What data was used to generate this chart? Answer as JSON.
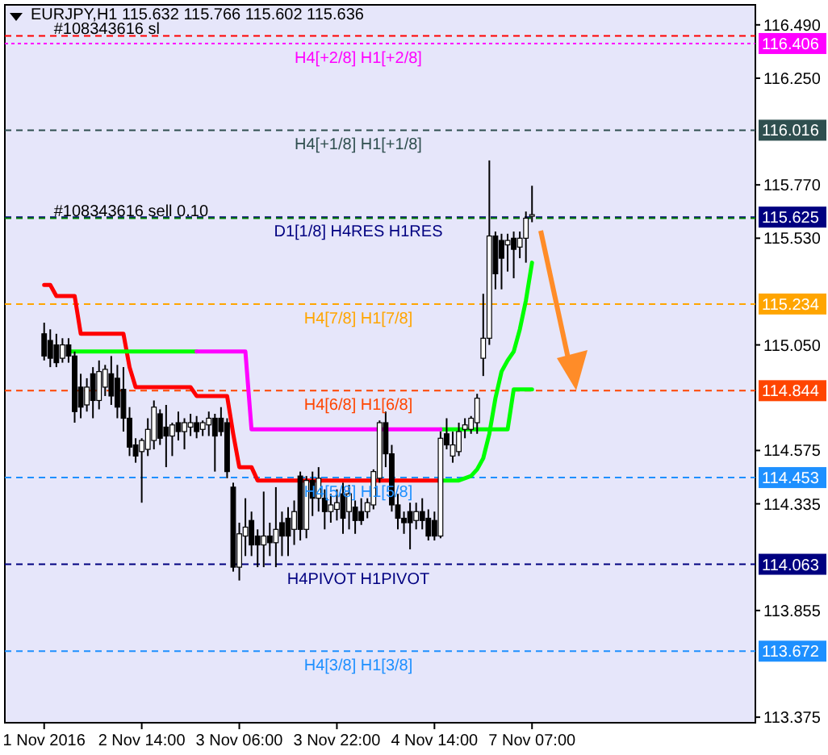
{
  "chart_data": {
    "type": "candlestick",
    "title": "EURJPY,H1 115.632 115.766 115.602 115.636",
    "categories": [
      "1 Nov 2016",
      null,
      null,
      null,
      null,
      null,
      null,
      null,
      null,
      null,
      null,
      null,
      null,
      null,
      null,
      null,
      "2 Nov 14:00",
      null,
      null,
      null,
      null,
      null,
      null,
      null,
      null,
      null,
      null,
      null,
      null,
      null,
      null,
      null,
      "3 Nov 06:00",
      null,
      null,
      null,
      null,
      null,
      null,
      null,
      null,
      null,
      null,
      null,
      null,
      null,
      null,
      null,
      "3 Nov 22:00",
      null,
      null,
      null,
      null,
      null,
      null,
      null,
      null,
      null,
      null,
      null,
      null,
      null,
      null,
      null,
      "4 Nov 14:00",
      null,
      null,
      null,
      null,
      null,
      null,
      null,
      null,
      null,
      null,
      null,
      null,
      null,
      null,
      null,
      "7 Nov 07:00",
      null,
      null,
      null,
      null,
      null,
      null,
      null,
      null,
      null,
      null,
      null,
      null,
      null,
      null,
      null,
      null,
      null,
      null,
      null,
      null,
      null,
      null,
      null,
      null,
      null,
      null,
      null,
      null,
      null,
      null,
      null,
      null,
      null,
      null,
      null,
      null
    ],
    "ohlc": [
      [
        115.1,
        115.15,
        114.98,
        115.0
      ],
      [
        115.07,
        115.12,
        114.95,
        114.99
      ],
      [
        115.05,
        115.1,
        114.95,
        114.97
      ],
      [
        114.99,
        115.08,
        114.97,
        115.05
      ],
      [
        115.05,
        115.08,
        114.97,
        115.0
      ],
      [
        115.0,
        115.02,
        114.7,
        114.75
      ],
      [
        114.86,
        114.92,
        114.72,
        114.77
      ],
      [
        114.78,
        114.9,
        114.75,
        114.86
      ],
      [
        114.92,
        114.95,
        114.72,
        114.8
      ],
      [
        114.8,
        114.98,
        114.76,
        114.93
      ],
      [
        114.86,
        114.96,
        114.82,
        114.94
      ],
      [
        114.92,
        115.0,
        114.78,
        114.82
      ],
      [
        114.9,
        114.96,
        114.72,
        114.77
      ],
      [
        114.85,
        114.95,
        114.66,
        114.72
      ],
      [
        114.72,
        114.77,
        114.55,
        114.59
      ],
      [
        114.6,
        114.63,
        114.52,
        114.55
      ],
      [
        114.57,
        114.63,
        114.34,
        114.62
      ],
      [
        114.58,
        114.72,
        114.55,
        114.67
      ],
      [
        114.62,
        114.8,
        114.58,
        114.77
      ],
      [
        114.74,
        114.76,
        114.6,
        114.63
      ],
      [
        114.68,
        114.78,
        114.5,
        114.64
      ],
      [
        114.64,
        114.7,
        114.55,
        114.69
      ],
      [
        114.7,
        114.75,
        114.62,
        114.66
      ],
      [
        114.66,
        114.72,
        114.58,
        114.7
      ],
      [
        114.68,
        114.74,
        114.64,
        114.7
      ],
      [
        114.7,
        114.73,
        114.63,
        114.66
      ],
      [
        114.67,
        114.71,
        114.64,
        114.7
      ],
      [
        114.69,
        114.75,
        114.64,
        114.72
      ],
      [
        114.72,
        114.74,
        114.48,
        114.64
      ],
      [
        114.72,
        114.77,
        114.64,
        114.66
      ],
      [
        114.7,
        114.72,
        114.45,
        114.48
      ],
      [
        114.41,
        114.43,
        114.03,
        114.05
      ],
      [
        114.05,
        114.25,
        113.99,
        114.2
      ],
      [
        114.19,
        114.36,
        114.1,
        114.23
      ],
      [
        114.26,
        114.3,
        114.1,
        114.15
      ],
      [
        114.19,
        114.22,
        114.05,
        114.15
      ],
      [
        114.15,
        114.39,
        114.05,
        114.19
      ],
      [
        114.19,
        114.25,
        114.1,
        114.16
      ],
      [
        114.16,
        114.41,
        114.05,
        114.22
      ],
      [
        114.25,
        114.3,
        114.1,
        114.19
      ],
      [
        114.27,
        114.32,
        114.1,
        114.19
      ],
      [
        114.22,
        114.35,
        114.15,
        114.3
      ],
      [
        114.46,
        114.48,
        114.17,
        114.22
      ],
      [
        114.22,
        114.46,
        114.18,
        114.44
      ],
      [
        114.44,
        114.48,
        114.28,
        114.36
      ],
      [
        114.36,
        114.5,
        114.3,
        114.45
      ],
      [
        114.36,
        114.4,
        114.22,
        114.3
      ],
      [
        114.3,
        114.38,
        114.25,
        114.33
      ],
      [
        114.31,
        114.4,
        114.26,
        114.34
      ],
      [
        114.38,
        114.43,
        114.2,
        114.27
      ],
      [
        114.3,
        114.42,
        114.22,
        114.38
      ],
      [
        114.32,
        114.35,
        114.2,
        114.26
      ],
      [
        114.3,
        114.36,
        114.24,
        114.26
      ],
      [
        114.3,
        114.36,
        114.27,
        114.34
      ],
      [
        114.33,
        114.49,
        114.31,
        114.48
      ],
      [
        114.45,
        114.71,
        114.43,
        114.7
      ],
      [
        114.7,
        114.75,
        114.5,
        114.56
      ],
      [
        114.56,
        114.6,
        114.3,
        114.33
      ],
      [
        114.33,
        114.38,
        114.22,
        114.27
      ],
      [
        114.27,
        114.3,
        114.2,
        114.25
      ],
      [
        114.3,
        114.34,
        114.13,
        114.25
      ],
      [
        114.26,
        114.34,
        114.22,
        114.3
      ],
      [
        114.3,
        114.36,
        114.22,
        114.26
      ],
      [
        114.27,
        114.31,
        114.17,
        114.19
      ],
      [
        114.26,
        114.3,
        114.17,
        114.19
      ],
      [
        114.19,
        114.66,
        114.18,
        114.63
      ],
      [
        114.65,
        114.72,
        114.58,
        114.6
      ],
      [
        114.55,
        114.66,
        114.52,
        114.6
      ],
      [
        114.57,
        114.7,
        114.55,
        114.66
      ],
      [
        114.67,
        114.72,
        114.63,
        114.69
      ],
      [
        114.67,
        114.73,
        114.65,
        114.72
      ],
      [
        114.7,
        114.83,
        114.65,
        114.81
      ],
      [
        114.99,
        115.28,
        114.91,
        115.08
      ],
      [
        115.08,
        115.88,
        115.05,
        115.54
      ],
      [
        115.54,
        115.56,
        115.3,
        115.37
      ],
      [
        115.52,
        115.55,
        115.3,
        115.44
      ],
      [
        115.5,
        115.55,
        115.38,
        115.52
      ],
      [
        115.53,
        115.56,
        115.35,
        115.48
      ],
      [
        115.49,
        115.56,
        115.44,
        115.53
      ],
      [
        115.53,
        115.65,
        115.42,
        115.62
      ],
      [
        115.632,
        115.766,
        115.602,
        115.636
      ],
      null,
      null,
      null,
      null,
      null,
      null,
      null,
      null,
      null,
      null,
      null,
      null,
      null,
      null,
      null,
      null,
      null,
      null,
      null,
      null,
      null,
      null,
      null,
      null,
      null,
      null,
      null,
      null,
      null,
      null,
      null,
      null,
      null,
      null,
      null,
      null
    ],
    "series": [
      {
        "type": "line",
        "color": "#ff0000",
        "values": [
          115.32,
          115.32,
          115.27,
          115.27,
          115.27,
          115.27,
          115.1,
          115.1,
          115.1,
          115.1,
          115.1,
          115.1,
          115.1,
          115.1,
          114.95,
          114.86,
          114.86,
          114.86,
          114.86,
          114.86,
          114.86,
          114.86,
          114.86,
          114.86,
          114.86,
          114.82,
          114.82,
          114.82,
          114.82,
          114.82,
          114.82,
          114.65,
          114.5,
          114.5,
          114.5,
          114.44,
          114.44,
          114.44,
          114.44,
          114.44,
          114.44,
          114.44,
          114.44,
          114.44,
          114.44,
          114.44,
          114.44,
          114.44,
          114.44,
          114.44,
          114.44,
          114.44,
          114.44,
          114.44,
          114.44,
          114.44,
          114.44,
          114.44,
          114.44,
          114.44,
          114.44,
          114.44,
          114.44,
          114.44,
          114.44,
          114.44,
          null,
          null,
          null,
          null,
          null,
          null,
          null,
          null,
          null,
          null,
          null,
          null,
          null,
          null,
          null,
          null,
          null,
          null,
          null,
          null,
          null,
          null,
          null,
          null,
          null,
          null,
          null,
          null,
          null,
          null,
          null,
          null,
          null,
          null,
          null,
          null,
          null,
          null,
          null,
          null,
          null,
          null,
          null,
          null,
          null,
          null,
          null,
          null,
          null,
          null,
          null
        ]
      },
      {
        "type": "line",
        "color": "#00ff00",
        "values": [
          null,
          null,
          null,
          null,
          115.02,
          115.02,
          115.02,
          115.02,
          115.02,
          115.02,
          115.02,
          115.02,
          115.02,
          115.02,
          115.02,
          115.02,
          115.02,
          115.02,
          115.02,
          115.02,
          115.02,
          115.02,
          115.02,
          115.02,
          115.02,
          115.02,
          null,
          null,
          null,
          null,
          null,
          null,
          null,
          null,
          null,
          null,
          null,
          null,
          null,
          null,
          null,
          null,
          null,
          null,
          null,
          null,
          null,
          null,
          null,
          null,
          null,
          null,
          null,
          null,
          null,
          null,
          null,
          null,
          null,
          null,
          null,
          null,
          null,
          null,
          null,
          114.67,
          114.67,
          114.67,
          114.67,
          114.67,
          114.67,
          114.67,
          114.67,
          114.67,
          114.67,
          114.67,
          114.67,
          114.85,
          114.85,
          114.85,
          114.85,
          null,
          null,
          null,
          null,
          null,
          null,
          null,
          null,
          null,
          null,
          null,
          null,
          null,
          null,
          null,
          null,
          null,
          null,
          null,
          null,
          null,
          null,
          null,
          null,
          null,
          null,
          null,
          null,
          null,
          null,
          null,
          null,
          null,
          null,
          null,
          null
        ]
      },
      {
        "type": "line",
        "color": "#ff00ff",
        "values": [
          null,
          null,
          null,
          null,
          null,
          null,
          null,
          null,
          null,
          null,
          null,
          null,
          null,
          null,
          null,
          null,
          null,
          null,
          null,
          null,
          null,
          null,
          null,
          null,
          null,
          115.02,
          115.02,
          115.02,
          115.02,
          115.02,
          115.02,
          115.02,
          115.02,
          115.02,
          114.67,
          114.67,
          114.67,
          114.67,
          114.67,
          114.67,
          114.67,
          114.67,
          114.67,
          114.67,
          114.67,
          114.67,
          114.67,
          114.67,
          114.67,
          114.67,
          114.67,
          114.67,
          114.67,
          114.67,
          114.67,
          114.67,
          114.67,
          114.67,
          114.67,
          114.67,
          114.67,
          114.67,
          114.67,
          114.67,
          114.67,
          114.67,
          null,
          null,
          null,
          null,
          null,
          null,
          null,
          null,
          null,
          null,
          null,
          null,
          null,
          null,
          null,
          null,
          null,
          null,
          null,
          null,
          null,
          null,
          null,
          null,
          null,
          null,
          null,
          null,
          null,
          null,
          null,
          null,
          null,
          null,
          null,
          null,
          null,
          null,
          null,
          null,
          null,
          null,
          null,
          null,
          null,
          null,
          null,
          null,
          null,
          null,
          null
        ]
      },
      {
        "type": "line",
        "color": "#00ff00",
        "values": [
          null,
          null,
          null,
          null,
          null,
          null,
          null,
          null,
          null,
          null,
          null,
          null,
          null,
          null,
          null,
          null,
          null,
          null,
          null,
          null,
          null,
          null,
          null,
          null,
          null,
          null,
          null,
          null,
          null,
          null,
          null,
          null,
          null,
          null,
          null,
          null,
          null,
          null,
          null,
          null,
          null,
          null,
          null,
          null,
          null,
          null,
          null,
          null,
          null,
          null,
          null,
          null,
          null,
          null,
          null,
          null,
          null,
          null,
          null,
          null,
          null,
          null,
          null,
          null,
          null,
          114.44,
          114.44,
          114.44,
          114.44,
          114.45,
          114.46,
          114.49,
          114.54,
          114.65,
          114.81,
          114.93,
          114.98,
          115.02,
          115.12,
          115.25,
          115.42,
          null,
          null,
          null,
          null,
          null,
          null,
          null,
          null,
          null,
          null,
          null,
          null,
          null,
          null,
          null,
          null,
          null,
          null,
          null,
          null,
          null,
          null,
          null,
          null,
          null,
          null,
          null,
          null,
          null,
          null,
          null,
          null,
          null,
          null,
          null,
          null
        ]
      }
    ],
    "ylim": [
      113.35,
      116.58
    ],
    "yticks": [
      {
        "value": 116.49,
        "label": "116.490"
      },
      {
        "value": 116.25,
        "label": "116.250"
      },
      {
        "value": 115.77,
        "label": "115.770"
      },
      {
        "value": 115.53,
        "label": "115.530"
      },
      {
        "value": 115.05,
        "label": "115.050"
      },
      {
        "value": 114.575,
        "label": "114.575"
      },
      {
        "value": 114.335,
        "label": "114.335"
      },
      {
        "value": 113.855,
        "label": "113.855"
      },
      {
        "value": 113.375,
        "label": "113.375"
      }
    ],
    "ref_lines": [
      {
        "axis": "y",
        "value": 116.406,
        "label": "116.406",
        "color": "#ff00ff",
        "line_style": "dotted"
      },
      {
        "axis": "y",
        "value": 116.016,
        "label": "116.016",
        "color": "#2f4f4f",
        "line_style": "dashed"
      },
      {
        "axis": "y",
        "value": 115.625,
        "label": "115.625",
        "color": "#000080",
        "line_style": "dashed"
      },
      {
        "axis": "y",
        "value": 115.234,
        "label": "115.234",
        "color": "#ffa500",
        "line_style": "dashed"
      },
      {
        "axis": "y",
        "value": 114.844,
        "label": "114.844",
        "color": "#ff4500",
        "line_style": "dashed"
      },
      {
        "axis": "y",
        "value": 114.453,
        "label": "114.453",
        "color": "#1e90ff",
        "line_style": "dashed"
      },
      {
        "axis": "y",
        "value": 114.063,
        "label": "114.063",
        "color": "#000080",
        "line_style": "dashed"
      },
      {
        "axis": "y",
        "value": 113.672,
        "label": "113.672",
        "color": "#1e90ff",
        "line_style": "dashed"
      },
      {
        "axis": "y",
        "value": 116.44,
        "color": "#ff0000",
        "line_style": "dashed"
      },
      {
        "axis": "y",
        "value": 115.62,
        "color": "#008000",
        "line_style": "dashed"
      }
    ],
    "annotations": [
      {
        "text": "H4[+2/8] H1[+2/8]",
        "y": 116.406
      },
      {
        "text": "H4[+1/8] H1[+1/8]",
        "y": 116.016
      },
      {
        "text": "D1[1/8] H4RES H1RES",
        "y": 115.625
      },
      {
        "text": "H4[7/8] H1[7/8]",
        "y": 115.234
      },
      {
        "text": "H4[6/8] H1[6/8]",
        "y": 114.844
      },
      {
        "text": "H4[5/8] H1[5/8]",
        "y": 114.453
      },
      {
        "text": "H4PIVOT H1PIVOT",
        "y": 114.063
      },
      {
        "text": "H4[3/8] H1[3/8]",
        "y": 113.672
      },
      {
        "text": "#108343616 sl",
        "x": "1 Nov 2016",
        "y": 116.44
      },
      {
        "text": "#108343616 sell 0.10",
        "x": "1 Nov 2016",
        "y": 115.62
      }
    ]
  }
}
